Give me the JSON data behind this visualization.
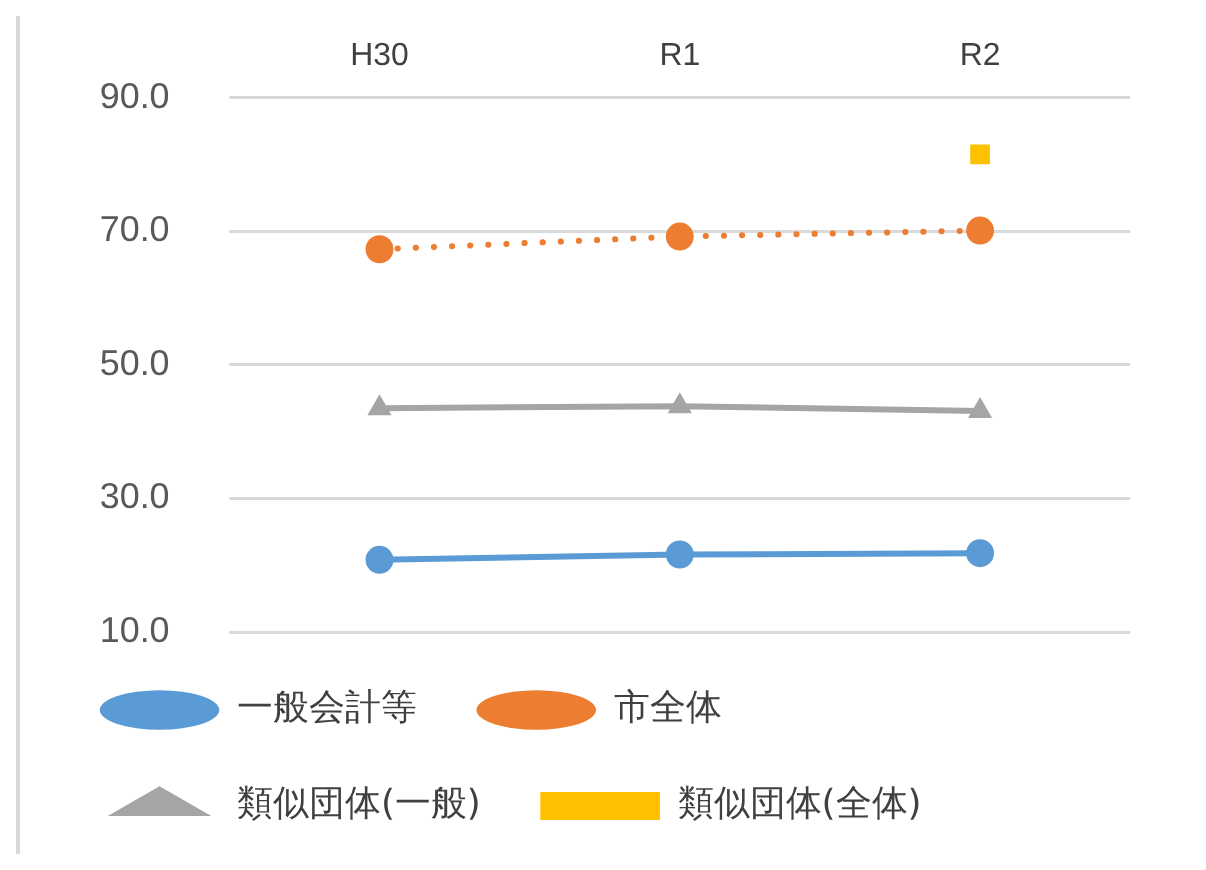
{
  "chart_data": {
    "type": "line",
    "categories": [
      "H30",
      "R1",
      "R2"
    ],
    "series": [
      {
        "name": "一般会計等",
        "color": "#5b9bd5",
        "values": [
          20.8,
          21.6,
          21.8
        ],
        "marker": "circle",
        "line_style": "solid"
      },
      {
        "name": "市全体",
        "color": "#ed7d31",
        "values": [
          67.3,
          69.2,
          70.1
        ],
        "marker": "circle",
        "line_style": "dotted"
      },
      {
        "name": "類似団体(一般)",
        "color": "#a5a5a5",
        "values": [
          43.5,
          43.8,
          43.1
        ],
        "marker": "triangle",
        "line_style": "solid"
      },
      {
        "name": "類似団体(全体)",
        "color": "#ffc000",
        "values": [
          null,
          null,
          81.5
        ],
        "marker": "square",
        "line_style": "solid"
      }
    ],
    "ylim": [
      10,
      90
    ],
    "yticks": [
      {
        "value": 10,
        "label": "10.0"
      },
      {
        "value": 30,
        "label": "30.0"
      },
      {
        "value": 50,
        "label": "50.0"
      },
      {
        "value": 70,
        "label": "70.0"
      },
      {
        "value": 90,
        "label": "90.0"
      }
    ],
    "grid": "y",
    "legend": "bottom"
  }
}
